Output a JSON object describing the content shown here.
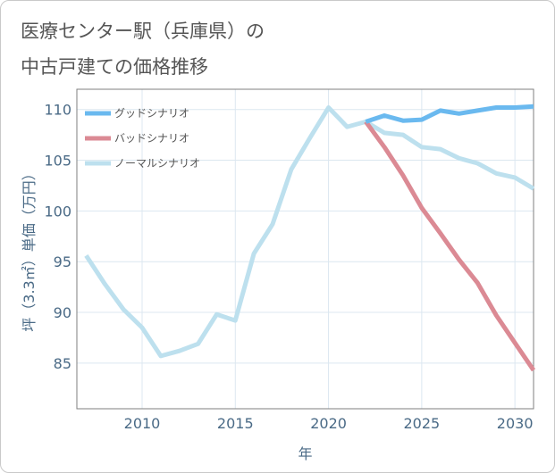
{
  "header": {
    "title_line_1": "医療センター駅（兵庫県）の",
    "title_line_2": "中古戸建ての価格推移"
  },
  "chart_data": {
    "type": "line",
    "title": "医療センター駅（兵庫県）の中古戸建ての価格推移",
    "xlabel": "年",
    "ylabel": "坪（3.3㎡）単価（万円）",
    "xlim": [
      2006.5,
      2031
    ],
    "ylim": [
      80.5,
      112
    ],
    "x_ticks": [
      2010,
      2015,
      2020,
      2025,
      2030
    ],
    "x_tick_labels": [
      "2010",
      "2015",
      "2020",
      "2025",
      "2030"
    ],
    "y_ticks": [
      85,
      90,
      95,
      100,
      105,
      110
    ],
    "y_tick_labels": [
      "85",
      "90",
      "95",
      "100",
      "105",
      "110"
    ],
    "grid": true,
    "legend_position": "top-left",
    "series": [
      {
        "name": "グッドシナリオ",
        "color": "#6ab9ef",
        "x": [
          2022,
          2023,
          2024,
          2025,
          2026,
          2027,
          2028,
          2029,
          2030,
          2031
        ],
        "values": [
          108.8,
          109.4,
          108.9,
          109.0,
          109.9,
          109.6,
          109.9,
          110.2,
          110.2,
          110.3
        ]
      },
      {
        "name": "バッドシナリオ",
        "color": "#db8a94",
        "x": [
          2022,
          2023,
          2024,
          2025,
          2026,
          2027,
          2028,
          2029,
          2030,
          2031
        ],
        "values": [
          108.8,
          106.3,
          103.5,
          100.3,
          97.8,
          95.2,
          92.9,
          89.7,
          87.0,
          84.3
        ]
      },
      {
        "name": "ノーマルシナリオ",
        "color": "#bde0ee",
        "x": [
          2007,
          2008,
          2009,
          2010,
          2011,
          2012,
          2013,
          2014,
          2015,
          2016,
          2017,
          2018,
          2019,
          2020,
          2021,
          2022,
          2023,
          2024,
          2025,
          2026,
          2027,
          2028,
          2029,
          2030,
          2031
        ],
        "values": [
          95.6,
          92.8,
          90.3,
          88.5,
          85.7,
          86.2,
          86.9,
          89.8,
          89.2,
          95.8,
          98.7,
          104.1,
          107.2,
          110.2,
          108.3,
          108.8,
          107.7,
          107.5,
          106.3,
          106.1,
          105.2,
          104.7,
          103.7,
          103.3,
          102.2
        ]
      }
    ]
  }
}
